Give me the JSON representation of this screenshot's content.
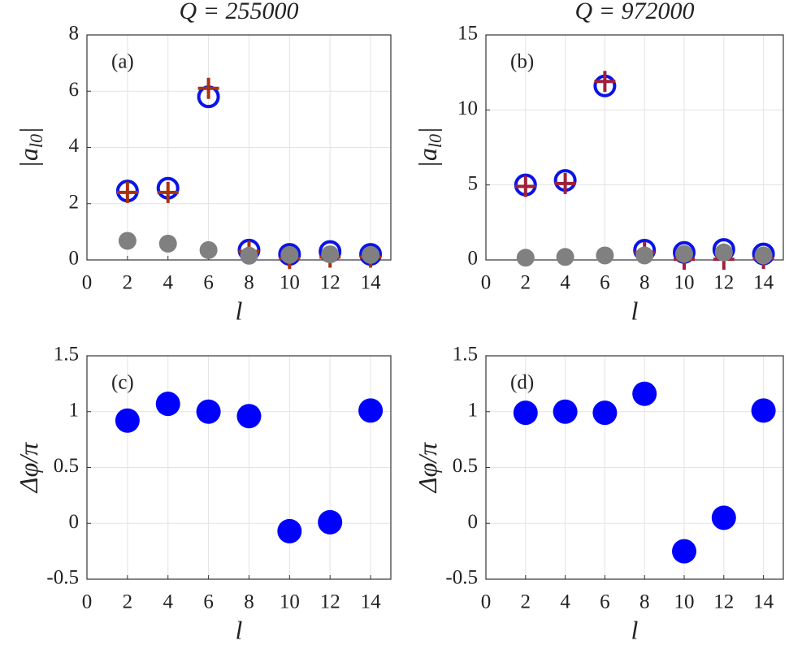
{
  "chart_data": [
    {
      "type": "scatter",
      "title": "Q = 255000",
      "xlabel": "l",
      "ylabel": [
        "|a",
        "l0",
        "|"
      ],
      "annotation": "(a)",
      "x": [
        2,
        4,
        6,
        8,
        10,
        12,
        14
      ],
      "xlim": [
        0,
        15
      ],
      "xticks": [
        0,
        2,
        4,
        6,
        8,
        10,
        12,
        14
      ],
      "ylim": [
        0,
        8
      ],
      "yticks": [
        0,
        2,
        4,
        6,
        8
      ],
      "grid": true,
      "series": [
        {
          "marker": "open-circle",
          "color": "#0a14e6",
          "values": [
            2.45,
            2.55,
            5.8,
            0.35,
            0.2,
            0.3,
            0.2
          ]
        },
        {
          "marker": "plus",
          "color": "#a8320e",
          "values": [
            2.4,
            2.4,
            6.1,
            0.3,
            0.05,
            0.1,
            0.1
          ]
        },
        {
          "marker": "filled-circle",
          "color": "#808080",
          "values": [
            0.68,
            0.58,
            0.35,
            0.15,
            0.18,
            0.2,
            0.18
          ]
        }
      ]
    },
    {
      "type": "scatter",
      "title": "Q = 972000",
      "xlabel": "l",
      "ylabel": [
        "|a",
        "l0",
        "|"
      ],
      "annotation": "(b)",
      "x": [
        2,
        4,
        6,
        8,
        10,
        12,
        14
      ],
      "xlim": [
        0,
        15
      ],
      "xticks": [
        0,
        2,
        4,
        6,
        8,
        10,
        12,
        14
      ],
      "ylim": [
        0,
        15
      ],
      "yticks": [
        0,
        5,
        10,
        15
      ],
      "grid": true,
      "series": [
        {
          "marker": "open-circle",
          "color": "#0a14e6",
          "values": [
            5.0,
            5.3,
            11.6,
            0.65,
            0.5,
            0.7,
            0.4
          ]
        },
        {
          "marker": "plus",
          "color": "#a0203a",
          "values": [
            4.9,
            5.1,
            11.9,
            0.5,
            0.05,
            0.05,
            0.1
          ]
        },
        {
          "marker": "filled-circle",
          "color": "#808080",
          "values": [
            0.15,
            0.2,
            0.3,
            0.3,
            0.4,
            0.5,
            0.3
          ]
        }
      ]
    },
    {
      "type": "scatter",
      "xlabel": "l",
      "ylabel": [
        "Δφ/π"
      ],
      "annotation": "(c)",
      "x": [
        2,
        4,
        6,
        8,
        10,
        12,
        14
      ],
      "xlim": [
        0,
        15
      ],
      "xticks": [
        0,
        2,
        4,
        6,
        8,
        10,
        12,
        14
      ],
      "ylim": [
        -0.5,
        1.5
      ],
      "yticks": [
        -0.5,
        0,
        0.5,
        1,
        1.5
      ],
      "grid": true,
      "series": [
        {
          "marker": "filled-circle",
          "color": "#0000ff",
          "values": [
            0.92,
            1.07,
            1.0,
            0.96,
            -0.07,
            0.01,
            1.01
          ]
        }
      ]
    },
    {
      "type": "scatter",
      "xlabel": "l",
      "ylabel": [
        "Δφ/π"
      ],
      "annotation": "(d)",
      "x": [
        2,
        4,
        6,
        8,
        10,
        12,
        14
      ],
      "xlim": [
        0,
        15
      ],
      "xticks": [
        0,
        2,
        4,
        6,
        8,
        10,
        12,
        14
      ],
      "ylim": [
        -0.5,
        1.5
      ],
      "yticks": [
        -0.5,
        0,
        0.5,
        1,
        1.5
      ],
      "grid": true,
      "series": [
        {
          "marker": "filled-circle",
          "color": "#0000ff",
          "values": [
            0.99,
            1.0,
            0.99,
            1.16,
            -0.25,
            0.05,
            1.01
          ]
        }
      ]
    }
  ]
}
